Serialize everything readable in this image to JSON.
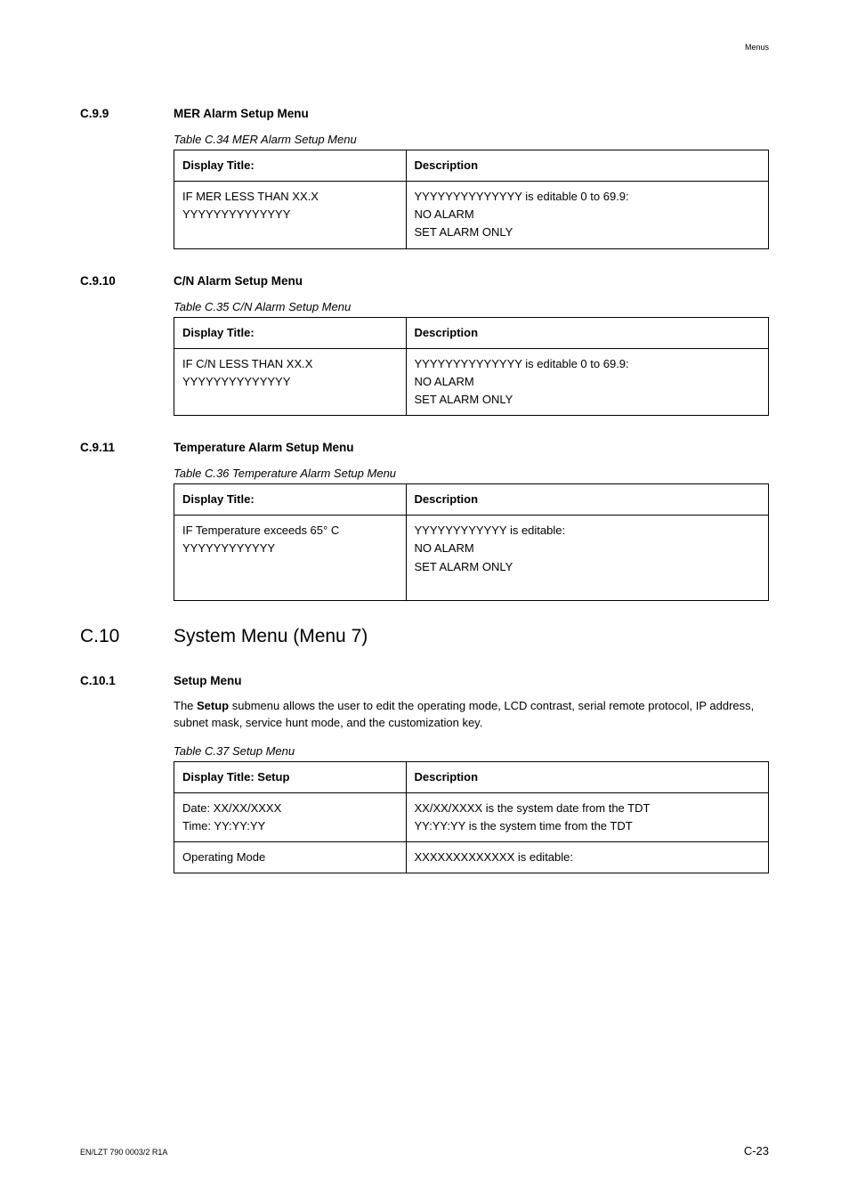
{
  "page": {
    "header_right": "Menus",
    "footer_left": "EN/LZT 790 0003/2 R1A",
    "footer_right": "C-23"
  },
  "sections": {
    "c99": {
      "num": "C.9.9",
      "title": "MER Alarm Setup Menu",
      "caption": "Table C.34 MER Alarm Setup Menu",
      "th1": "Display Title:",
      "th2": "Description",
      "r1c1": "IF MER LESS THAN XX.X\nYYYYYYYYYYYYYY",
      "r1c2": "YYYYYYYYYYYYYY is editable 0 to 69.9:\nNO ALARM\nSET ALARM ONLY"
    },
    "c910": {
      "num": "C.9.10",
      "title": "C/N Alarm Setup Menu",
      "caption": "Table C.35 C/N Alarm Setup Menu",
      "th1": "Display Title:",
      "th2": "Description",
      "r1c1": "IF C/N LESS THAN XX.X\nYYYYYYYYYYYYYY",
      "r1c2": "YYYYYYYYYYYYYY is editable 0 to 69.9:\nNO ALARM\nSET ALARM ONLY"
    },
    "c911": {
      "num": "C.9.11",
      "title": "Temperature Alarm Setup Menu",
      "caption": "Table C.36 Temperature Alarm Setup Menu",
      "th1": "Display Title:",
      "th2": "Description",
      "r1c1": "IF Temperature exceeds 65° C\nYYYYYYYYYYYY",
      "r1c2": "YYYYYYYYYYYY is editable:\nNO ALARM\nSET ALARM ONLY\n "
    },
    "c10": {
      "num": "C.10",
      "title": "System Menu (Menu 7)"
    },
    "c101": {
      "num": "C.10.1",
      "title": "Setup Menu",
      "para": "The Setup submenu allows the user to edit the operating mode, LCD contrast, serial remote protocol, IP address, subnet mask, service hunt mode, and the customization key.",
      "caption": "Table C.37 Setup Menu",
      "th1": "Display Title: Setup",
      "th2": "Description",
      "r1c1": "Date: XX/XX/XXXX\nTime: YY:YY:YY",
      "r1c2": "XX/XX/XXXX is the system date from the TDT\nYY:YY:YY is the system time from the TDT",
      "r2c1": "Operating Mode",
      "r2c2": "XXXXXXXXXXXXX is editable:"
    }
  }
}
